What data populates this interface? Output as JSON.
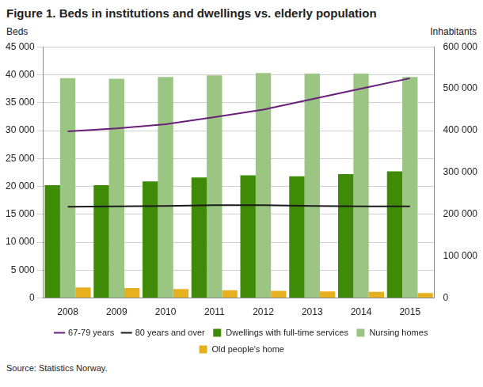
{
  "chart_data": {
    "type": "bar",
    "title": "Figure 1. Beds in institutions and dwellings vs. elderly population",
    "y_label": "Beds",
    "y2_label": "Inhabitants",
    "source": "Source: Statistics Norway.",
    "categories": [
      "2008",
      "2009",
      "2010",
      "2011",
      "2012",
      "2013",
      "2014",
      "2015"
    ],
    "series": [
      {
        "name": "Dwellings with full-time services",
        "type": "bar",
        "color": "#3f8a06",
        "values": [
          20200,
          20200,
          20900,
          21600,
          22000,
          21800,
          22200,
          22700
        ]
      },
      {
        "name": "Nursing homes",
        "type": "bar",
        "color": "#9bc582",
        "values": [
          39400,
          39300,
          39600,
          39900,
          40300,
          40200,
          40200,
          39600
        ]
      },
      {
        "name": "Old people's home",
        "type": "bar",
        "color": "#e7b01e",
        "values": [
          1900,
          1800,
          1600,
          1400,
          1300,
          1200,
          1100,
          900
        ]
      },
      {
        "name": "67-79 years",
        "type": "line",
        "axis": "y2",
        "color": "#6a1f7a",
        "values": [
          398000,
          405000,
          415000,
          432000,
          450000,
          475000,
          500000,
          525000
        ]
      },
      {
        "name": "80 years and over",
        "type": "line",
        "axis": "y2",
        "color": "#1a1a1a",
        "values": [
          218000,
          219000,
          220000,
          222000,
          222000,
          220000,
          219000,
          219000
        ]
      }
    ],
    "ylim": [
      0,
      45000
    ],
    "yticks": [
      0,
      {
        "value": 5000,
        "label": "5 000"
      },
      {
        "value": 10000,
        "label": "10 000"
      },
      {
        "value": 15000,
        "label": "15 000"
      },
      {
        "value": 20000,
        "label": "20 000"
      },
      {
        "value": 25000,
        "label": "25 000"
      },
      {
        "value": 30000,
        "label": "30 000"
      },
      {
        "value": 35000,
        "label": "35 000"
      },
      {
        "value": 40000,
        "label": "40 000"
      },
      {
        "value": 45000,
        "label": "45 000"
      }
    ],
    "y2lim": [
      0,
      600000
    ],
    "y2ticks": [
      0,
      {
        "value": 100000,
        "label": "100 000"
      },
      {
        "value": 200000,
        "label": "200 000"
      },
      {
        "value": 300000,
        "label": "300 000"
      },
      {
        "value": 400000,
        "label": "400 000"
      },
      {
        "value": 500000,
        "label": "500 000"
      },
      {
        "value": 600000,
        "label": "600 000"
      }
    ],
    "grid": true,
    "legend": "bottom"
  }
}
